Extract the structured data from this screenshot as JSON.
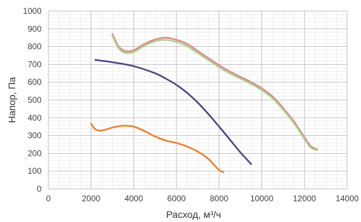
{
  "chart_data": {
    "type": "line",
    "xlabel": "Расход, м³/ч",
    "ylabel": "Напор, Па",
    "xlim": [
      0,
      14000
    ],
    "ylim": [
      0,
      1000
    ],
    "x_ticks": [
      0,
      2000,
      4000,
      6000,
      8000,
      10000,
      12000,
      14000
    ],
    "y_ticks": [
      0,
      100,
      200,
      300,
      400,
      500,
      600,
      700,
      800,
      900,
      1000
    ],
    "x_minor_step": 500,
    "y_minor_step": 20,
    "grid": true,
    "legend": "none",
    "series": [
      {
        "color": "#e08888",
        "points": [
          [
            3000,
            870
          ],
          [
            3300,
            800
          ],
          [
            3600,
            775
          ],
          [
            4000,
            780
          ],
          [
            4500,
            815
          ],
          [
            5000,
            840
          ],
          [
            5500,
            850
          ],
          [
            6000,
            838
          ],
          [
            6500,
            815
          ],
          [
            7000,
            775
          ],
          [
            7500,
            735
          ],
          [
            8000,
            695
          ],
          [
            8500,
            660
          ],
          [
            9000,
            630
          ],
          [
            9500,
            600
          ],
          [
            10000,
            565
          ],
          [
            10500,
            520
          ],
          [
            11000,
            455
          ],
          [
            11500,
            380
          ],
          [
            12000,
            290
          ],
          [
            12300,
            240
          ],
          [
            12600,
            222
          ]
        ]
      },
      {
        "color": "#a8d18d",
        "points": [
          [
            3000,
            860
          ],
          [
            3300,
            790
          ],
          [
            3600,
            765
          ],
          [
            4000,
            770
          ],
          [
            4500,
            805
          ],
          [
            5000,
            830
          ],
          [
            5500,
            838
          ],
          [
            6000,
            826
          ],
          [
            6500,
            803
          ],
          [
            7000,
            764
          ],
          [
            7500,
            724
          ],
          [
            8000,
            684
          ],
          [
            8500,
            650
          ],
          [
            9000,
            620
          ],
          [
            9500,
            590
          ],
          [
            10000,
            555
          ],
          [
            10500,
            510
          ],
          [
            11000,
            445
          ],
          [
            11500,
            370
          ],
          [
            12000,
            280
          ],
          [
            12300,
            232
          ],
          [
            12600,
            218
          ]
        ]
      },
      {
        "color": "#4b4485",
        "points": [
          [
            2200,
            725
          ],
          [
            3000,
            712
          ],
          [
            4000,
            690
          ],
          [
            5000,
            650
          ],
          [
            5500,
            620
          ],
          [
            6000,
            585
          ],
          [
            6500,
            540
          ],
          [
            7000,
            485
          ],
          [
            7500,
            420
          ],
          [
            8000,
            350
          ],
          [
            8500,
            278
          ],
          [
            9000,
            205
          ],
          [
            9500,
            140
          ]
        ]
      },
      {
        "color": "#ee7d2e",
        "points": [
          [
            2000,
            367
          ],
          [
            2200,
            335
          ],
          [
            2500,
            328
          ],
          [
            3000,
            345
          ],
          [
            3500,
            355
          ],
          [
            4000,
            350
          ],
          [
            4500,
            325
          ],
          [
            5000,
            295
          ],
          [
            5500,
            272
          ],
          [
            6000,
            258
          ],
          [
            6500,
            238
          ],
          [
            7000,
            210
          ],
          [
            7500,
            168
          ],
          [
            8000,
            105
          ],
          [
            8200,
            95
          ]
        ]
      }
    ]
  }
}
